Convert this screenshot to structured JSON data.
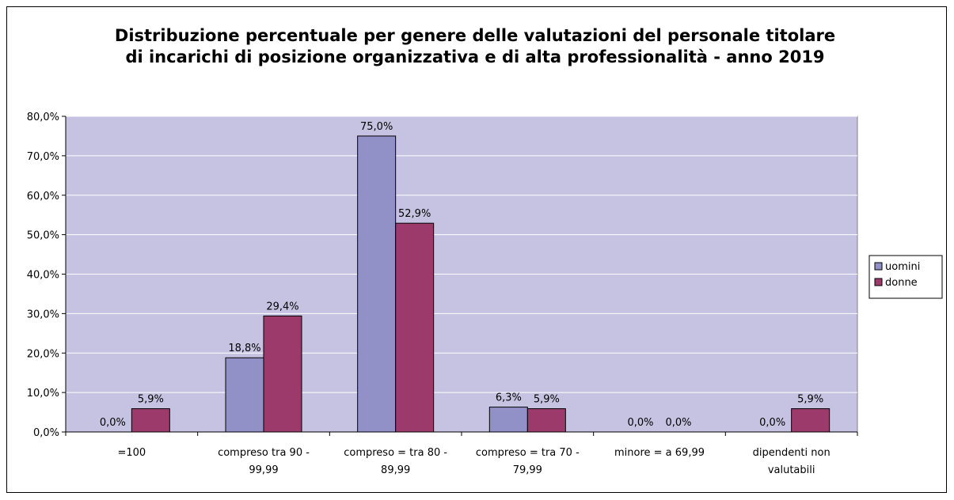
{
  "chart_data": {
    "type": "bar",
    "title": "Distribuzione percentuale per genere delle valutazioni del personale titolare di incarichi di posizione organizzativa e di alta professionalità - anno 2019",
    "categories": [
      "=100",
      "compreso tra 90 - 99,99",
      "compreso = tra 80 - 89,99",
      "compreso = tra 70 - 79,99",
      "minore = a 69,99",
      "dipendenti non valutabili"
    ],
    "series": [
      {
        "name": "uomini",
        "color": "#9191c8",
        "values": [
          0,
          18.8,
          75,
          6.3,
          0,
          0
        ],
        "value_labels": [
          "0,0%",
          "18,8%",
          "75,0%",
          "6,3%",
          "0,0%",
          "0,0%"
        ]
      },
      {
        "name": "donne",
        "color": "#9c3a6c",
        "values": [
          5.9,
          29.4,
          52.9,
          5.9,
          0,
          5.9
        ],
        "value_labels": [
          "5,9%",
          "29,4%",
          "52,9%",
          "5,9%",
          "0,0%",
          "5,9%"
        ]
      }
    ],
    "ylim": [
      0,
      80
    ],
    "yticks": [
      {
        "value": 0,
        "label": "0,0%"
      },
      {
        "value": 10,
        "label": "10,0%"
      },
      {
        "value": 20,
        "label": "20,0%"
      },
      {
        "value": 30,
        "label": "30,0%"
      },
      {
        "value": 40,
        "label": "40,0%"
      },
      {
        "value": 50,
        "label": "50,0%"
      },
      {
        "value": 60,
        "label": "60,0%"
      },
      {
        "value": 70,
        "label": "70,0%"
      },
      {
        "value": 80,
        "label": "80,0%"
      }
    ],
    "grid": true,
    "legend": "right",
    "plot_background": "#c6c2e2"
  }
}
